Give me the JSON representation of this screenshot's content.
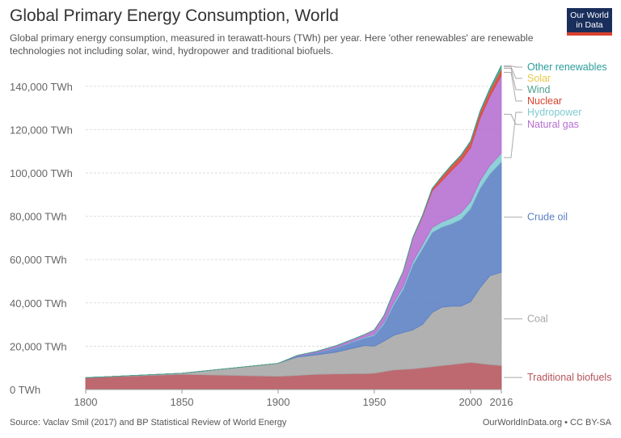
{
  "header": {
    "title": "Global Primary Energy Consumption, World",
    "subtitle": "Global primary energy consumption, measured in terawatt-hours (TWh) per year. Here 'other renewables' are renewable technologies not including solar, wind, hydropower and traditional biofuels.",
    "logo_line1": "Our World",
    "logo_line2": "in Data"
  },
  "footer": {
    "source": "Source: Vaclav Smil (2017) and BP Statistical Review of World Energy",
    "credit": "OurWorldInData.org • CC BY-SA"
  },
  "chart_data": {
    "type": "area",
    "stacked": true,
    "x": [
      1800,
      1850,
      1900,
      1910,
      1920,
      1930,
      1940,
      1945,
      1950,
      1955,
      1960,
      1965,
      1970,
      1975,
      1980,
      1985,
      1990,
      1995,
      2000,
      2005,
      2010,
      2016
    ],
    "series": [
      {
        "name": "Traditional biofuels",
        "color": "#b5545c",
        "values": [
          5500,
          7000,
          6100,
          6500,
          7000,
          7200,
          7300,
          7300,
          7500,
          8300,
          9000,
          9300,
          9500,
          10000,
          10500,
          11000,
          11500,
          12000,
          12500,
          12000,
          11500,
          11100
        ]
      },
      {
        "name": "Coal",
        "color": "#a6a6a6",
        "values": [
          0,
          500,
          6000,
          8500,
          9000,
          10000,
          12000,
          13000,
          12500,
          14000,
          16000,
          17000,
          18000,
          20000,
          25000,
          27000,
          27000,
          26500,
          28000,
          35000,
          41000,
          43000
        ]
      },
      {
        "name": "Crude oil",
        "color": "#5b7fc4",
        "values": [
          0,
          0,
          0,
          500,
          1000,
          2000,
          3000,
          3500,
          5000,
          8000,
          14000,
          20000,
          30000,
          35000,
          37000,
          37000,
          38000,
          40000,
          43000,
          46000,
          47000,
          51000
        ]
      },
      {
        "name": "Hydropower",
        "color": "#7fcbd2",
        "values": [
          0,
          0,
          0,
          0,
          100,
          200,
          300,
          400,
          500,
          800,
          1000,
          1200,
          1500,
          1800,
          2200,
          2300,
          2600,
          3000,
          3200,
          3400,
          3800,
          4000
        ]
      },
      {
        "name": "Natural gas",
        "color": "#b56dd0",
        "values": [
          0,
          0,
          0,
          300,
          500,
          800,
          1000,
          1200,
          2000,
          3000,
          5000,
          7000,
          11000,
          13000,
          17000,
          19000,
          22000,
          24000,
          25000,
          29000,
          32000,
          36000
        ]
      },
      {
        "name": "Nuclear",
        "color": "#d9422f",
        "values": [
          0,
          0,
          0,
          0,
          0,
          0,
          0,
          0,
          0,
          0,
          0,
          0,
          200,
          500,
          1000,
          2000,
          2300,
          2500,
          2700,
          2800,
          2800,
          2700
        ]
      },
      {
        "name": "Wind",
        "color": "#4ca18e",
        "values": [
          0,
          0,
          0,
          0,
          0,
          0,
          0,
          0,
          0,
          0,
          0,
          0,
          0,
          0,
          0,
          0,
          0,
          0,
          50,
          100,
          300,
          1000
        ]
      },
      {
        "name": "Solar",
        "color": "#e6c84a",
        "values": [
          0,
          0,
          0,
          0,
          0,
          0,
          0,
          0,
          0,
          0,
          0,
          0,
          0,
          0,
          0,
          0,
          0,
          0,
          0,
          0,
          50,
          300
        ]
      },
      {
        "name": "Other renewables",
        "color": "#2a9d9a",
        "values": [
          0,
          0,
          0,
          0,
          0,
          0,
          0,
          0,
          0,
          0,
          0,
          0,
          0,
          0,
          100,
          150,
          200,
          250,
          300,
          400,
          500,
          600
        ]
      }
    ],
    "xlim": [
      1800,
      2016
    ],
    "ylim": [
      0,
      150000
    ],
    "y_ticks": [
      0,
      20000,
      40000,
      60000,
      80000,
      100000,
      120000,
      140000
    ],
    "y_tick_labels": [
      "0 TWh",
      "20,000 TWh",
      "40,000 TWh",
      "60,000 TWh",
      "80,000 TWh",
      "100,000 TWh",
      "120,000 TWh",
      "140,000 TWh"
    ],
    "x_ticks": [
      1800,
      1850,
      1900,
      1950,
      2000,
      2016
    ],
    "x_tick_labels": [
      "1800",
      "1850",
      "1900",
      "1950",
      "2000",
      "2016"
    ],
    "grid": true,
    "legend": "right-end labels"
  }
}
